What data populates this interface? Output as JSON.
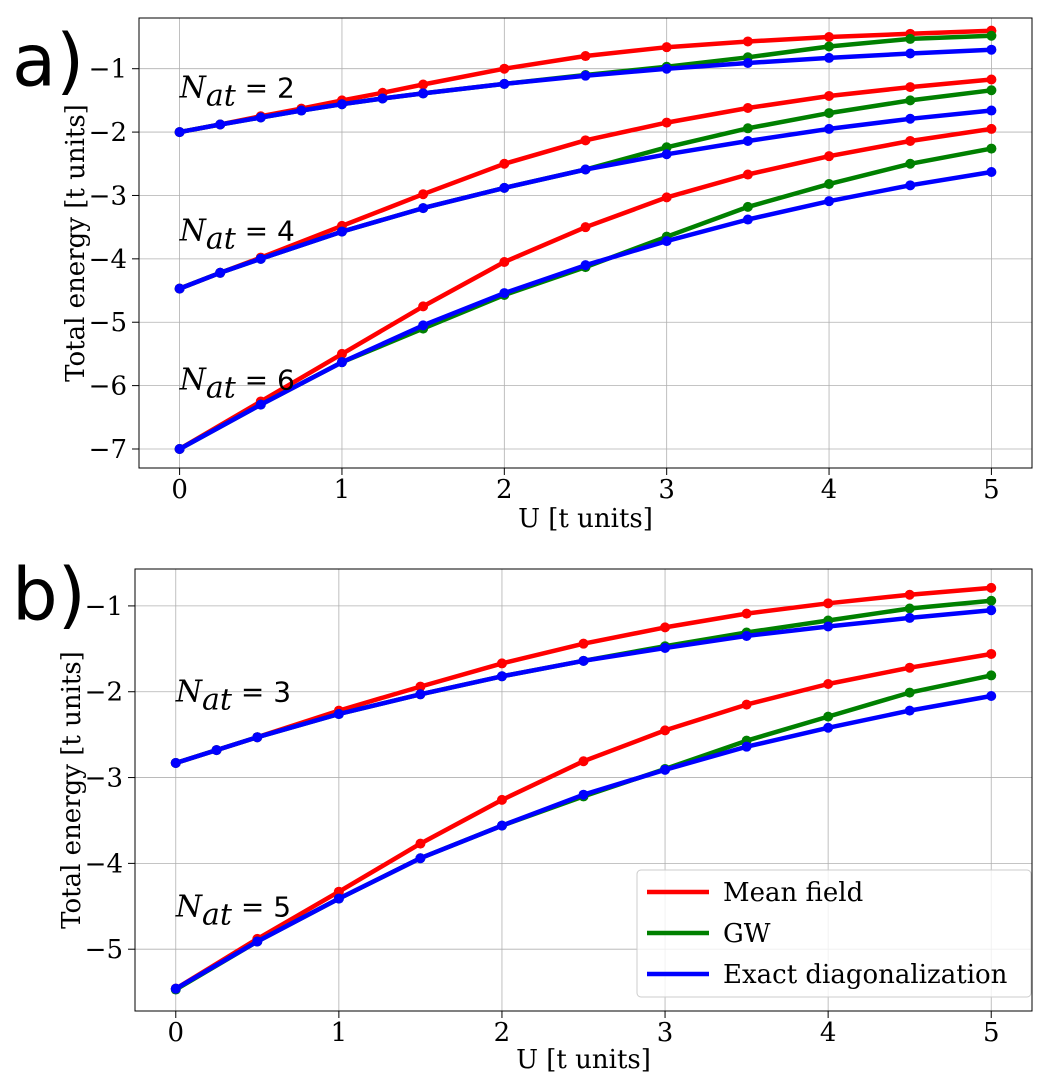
{
  "chart_data": [
    {
      "panel": "a)",
      "type": "line",
      "xlabel": "U [t units]",
      "ylabel": "Total energy [t units]",
      "xlim": [
        -0.25,
        5.25
      ],
      "ylim": [
        -7.3,
        -0.2
      ],
      "xticks": [
        0,
        1,
        2,
        3,
        4,
        5
      ],
      "xtick_labels": [
        "0",
        "1",
        "2",
        "3",
        "4",
        "5"
      ],
      "yticks": [
        -7,
        -6,
        -5,
        -4,
        -3,
        -2,
        -1
      ],
      "ytick_labels": [
        "−7",
        "−6",
        "−5",
        "−4",
        "−3",
        "−2",
        "−1"
      ],
      "grid": true,
      "annotations": [
        {
          "label": "N",
          "sub": "at",
          "rest": " = 2",
          "x": 0.0,
          "y": -1.3
        },
        {
          "label": "N",
          "sub": "at",
          "rest": " = 4",
          "x": 0.0,
          "y": -3.55
        },
        {
          "label": "N",
          "sub": "at",
          "rest": " = 6",
          "x": 0.0,
          "y": -5.9
        }
      ],
      "series": [
        {
          "name": "Mean field",
          "color": "#ff0000",
          "x": [
            0,
            0.25,
            0.5,
            0.75,
            1,
            1.25,
            1.5,
            2,
            2.5,
            3,
            3.5,
            4,
            4.5,
            5
          ],
          "values": [
            -2.0,
            -1.88,
            -1.75,
            -1.63,
            -1.5,
            -1.38,
            -1.25,
            -1.0,
            -0.8,
            -0.66,
            -0.57,
            -0.5,
            -0.45,
            -0.4
          ]
        },
        {
          "name": "GW",
          "color": "#008000",
          "x": [
            0,
            0.25,
            0.5,
            0.75,
            1,
            1.25,
            1.5,
            2,
            2.5,
            3,
            3.5,
            4,
            4.5,
            5
          ],
          "values": [
            -2.0,
            -1.88,
            -1.77,
            -1.66,
            -1.56,
            -1.47,
            -1.39,
            -1.24,
            -1.1,
            -0.97,
            -0.82,
            -0.65,
            -0.53,
            -0.48
          ]
        },
        {
          "name": "Exact diagonalization",
          "color": "#0000ff",
          "x": [
            0,
            0.25,
            0.5,
            0.75,
            1,
            1.25,
            1.5,
            2,
            2.5,
            3,
            3.5,
            4,
            4.5,
            5
          ],
          "values": [
            -2.0,
            -1.88,
            -1.77,
            -1.66,
            -1.56,
            -1.47,
            -1.39,
            -1.24,
            -1.11,
            -1.0,
            -0.91,
            -0.83,
            -0.76,
            -0.7
          ]
        },
        {
          "name": "Mean field",
          "color": "#ff0000",
          "x": [
            0,
            0.25,
            0.5,
            1,
            1.5,
            2,
            2.5,
            3,
            3.5,
            4,
            4.5,
            5
          ],
          "values": [
            -4.47,
            -4.22,
            -3.98,
            -3.48,
            -2.98,
            -2.5,
            -2.13,
            -1.85,
            -1.62,
            -1.43,
            -1.29,
            -1.17
          ]
        },
        {
          "name": "GW",
          "color": "#008000",
          "x": [
            0,
            0.25,
            0.5,
            1,
            1.5,
            2,
            2.5,
            3,
            3.5,
            4,
            4.5,
            5
          ],
          "values": [
            -4.47,
            -4.22,
            -4.0,
            -3.57,
            -3.2,
            -2.88,
            -2.59,
            -2.24,
            -1.94,
            -1.7,
            -1.5,
            -1.34
          ]
        },
        {
          "name": "Exact diagonalization",
          "color": "#0000ff",
          "x": [
            0,
            0.25,
            0.5,
            1,
            1.5,
            2,
            2.5,
            3,
            3.5,
            4,
            4.5,
            5
          ],
          "values": [
            -4.47,
            -4.22,
            -4.0,
            -3.57,
            -3.2,
            -2.88,
            -2.59,
            -2.35,
            -2.14,
            -1.95,
            -1.79,
            -1.66
          ]
        },
        {
          "name": "Mean field",
          "color": "#ff0000",
          "x": [
            0,
            0.5,
            1,
            1.5,
            2,
            2.5,
            3,
            3.5,
            4,
            4.5,
            5
          ],
          "values": [
            -7.0,
            -6.25,
            -5.5,
            -4.75,
            -4.05,
            -3.5,
            -3.03,
            -2.67,
            -2.38,
            -2.14,
            -1.95
          ]
        },
        {
          "name": "GW",
          "color": "#008000",
          "x": [
            0,
            0.5,
            1,
            1.5,
            2,
            2.5,
            3,
            3.5,
            4,
            4.5,
            5
          ],
          "values": [
            -7.0,
            -6.3,
            -5.63,
            -5.1,
            -4.57,
            -4.13,
            -3.65,
            -3.18,
            -2.82,
            -2.5,
            -2.26
          ]
        },
        {
          "name": "Exact diagonalization",
          "color": "#0000ff",
          "x": [
            0,
            0.5,
            1,
            1.5,
            2,
            2.5,
            3,
            3.5,
            4,
            4.5,
            5
          ],
          "values": [
            -7.0,
            -6.3,
            -5.63,
            -5.05,
            -4.54,
            -4.1,
            -3.72,
            -3.38,
            -3.09,
            -2.84,
            -2.63
          ]
        }
      ]
    },
    {
      "panel": "b)",
      "type": "line",
      "xlabel": "U [t units]",
      "ylabel": "Total energy [t units]",
      "xlim": [
        -0.25,
        5.25
      ],
      "ylim": [
        -5.72,
        -0.57
      ],
      "xticks": [
        0,
        1,
        2,
        3,
        4,
        5
      ],
      "xtick_labels": [
        "0",
        "1",
        "2",
        "3",
        "4",
        "5"
      ],
      "yticks": [
        -5,
        -4,
        -3,
        -2,
        -1
      ],
      "ytick_labels": [
        "−5",
        "−4",
        "−3",
        "−2",
        "−1"
      ],
      "grid": true,
      "legend_position": "bottom-right",
      "annotations": [
        {
          "label": "N",
          "sub": "at",
          "rest": " = 3",
          "x": 0.0,
          "y": -2.0
        },
        {
          "label": "N",
          "sub": "at",
          "rest": " = 5",
          "x": 0.0,
          "y": -4.5
        }
      ],
      "series": [
        {
          "name": "Mean field",
          "color": "#ff0000",
          "x": [
            0,
            0.25,
            0.5,
            1,
            1.5,
            2,
            2.5,
            3,
            3.5,
            4,
            4.5,
            5
          ],
          "values": [
            -2.83,
            -2.68,
            -2.53,
            -2.22,
            -1.94,
            -1.67,
            -1.44,
            -1.25,
            -1.09,
            -0.97,
            -0.87,
            -0.79
          ]
        },
        {
          "name": "GW",
          "color": "#008000",
          "x": [
            0,
            0.25,
            0.5,
            1,
            1.5,
            2,
            2.5,
            3,
            3.5,
            4,
            4.5,
            5
          ],
          "values": [
            -2.83,
            -2.68,
            -2.53,
            -2.26,
            -2.03,
            -1.82,
            -1.64,
            -1.47,
            -1.31,
            -1.17,
            -1.03,
            -0.94
          ]
        },
        {
          "name": "Exact diagonalization",
          "color": "#0000ff",
          "x": [
            0,
            0.25,
            0.5,
            1,
            1.5,
            2,
            2.5,
            3,
            3.5,
            4,
            4.5,
            5
          ],
          "values": [
            -2.83,
            -2.68,
            -2.53,
            -2.26,
            -2.03,
            -1.82,
            -1.64,
            -1.49,
            -1.35,
            -1.24,
            -1.14,
            -1.05
          ]
        },
        {
          "name": "Mean field",
          "color": "#ff0000",
          "x": [
            0,
            0.5,
            1,
            1.5,
            2,
            2.5,
            3,
            3.5,
            4,
            4.5,
            5
          ],
          "values": [
            -5.46,
            -4.88,
            -4.33,
            -3.77,
            -3.26,
            -2.81,
            -2.45,
            -2.15,
            -1.91,
            -1.72,
            -1.56
          ]
        },
        {
          "name": "GW",
          "color": "#008000",
          "x": [
            0,
            0.5,
            1,
            1.5,
            2,
            2.5,
            3,
            3.5,
            4,
            4.5,
            5
          ],
          "values": [
            -5.47,
            -4.91,
            -4.41,
            -3.94,
            -3.56,
            -3.22,
            -2.9,
            -2.57,
            -2.29,
            -2.01,
            -1.81
          ]
        },
        {
          "name": "Exact diagonalization",
          "color": "#0000ff",
          "x": [
            0,
            0.5,
            1,
            1.5,
            2,
            2.5,
            3,
            3.5,
            4,
            4.5,
            5
          ],
          "values": [
            -5.46,
            -4.91,
            -4.41,
            -3.94,
            -3.56,
            -3.2,
            -2.91,
            -2.64,
            -2.42,
            -2.22,
            -2.05
          ]
        }
      ],
      "legend": [
        {
          "label": "Mean field",
          "color": "#ff0000"
        },
        {
          "label": "GW",
          "color": "#008000"
        },
        {
          "label": "Exact diagonalization",
          "color": "#0000ff"
        }
      ]
    }
  ]
}
